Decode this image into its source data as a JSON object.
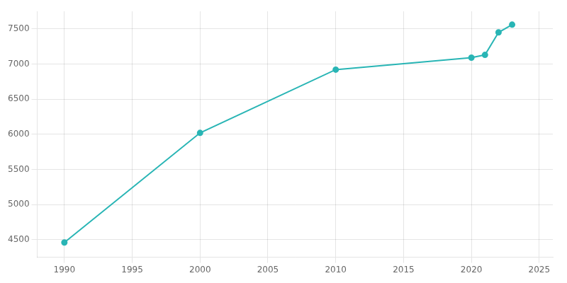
{
  "chart_data": {
    "type": "line",
    "x": [
      1990,
      2000,
      2010,
      2020,
      2021,
      2022,
      2023
    ],
    "values": [
      4460,
      6020,
      6920,
      7090,
      7130,
      7450,
      7560
    ],
    "color": "#29b5b5",
    "marker": "circle",
    "xlim": [
      1988,
      2026
    ],
    "ylim": [
      4250,
      7750
    ],
    "xticks": [
      1990,
      1995,
      2000,
      2005,
      2010,
      2015,
      2020,
      2025
    ],
    "yticks": [
      4500,
      5000,
      5500,
      6000,
      6500,
      7000,
      7500
    ],
    "grid": true
  }
}
